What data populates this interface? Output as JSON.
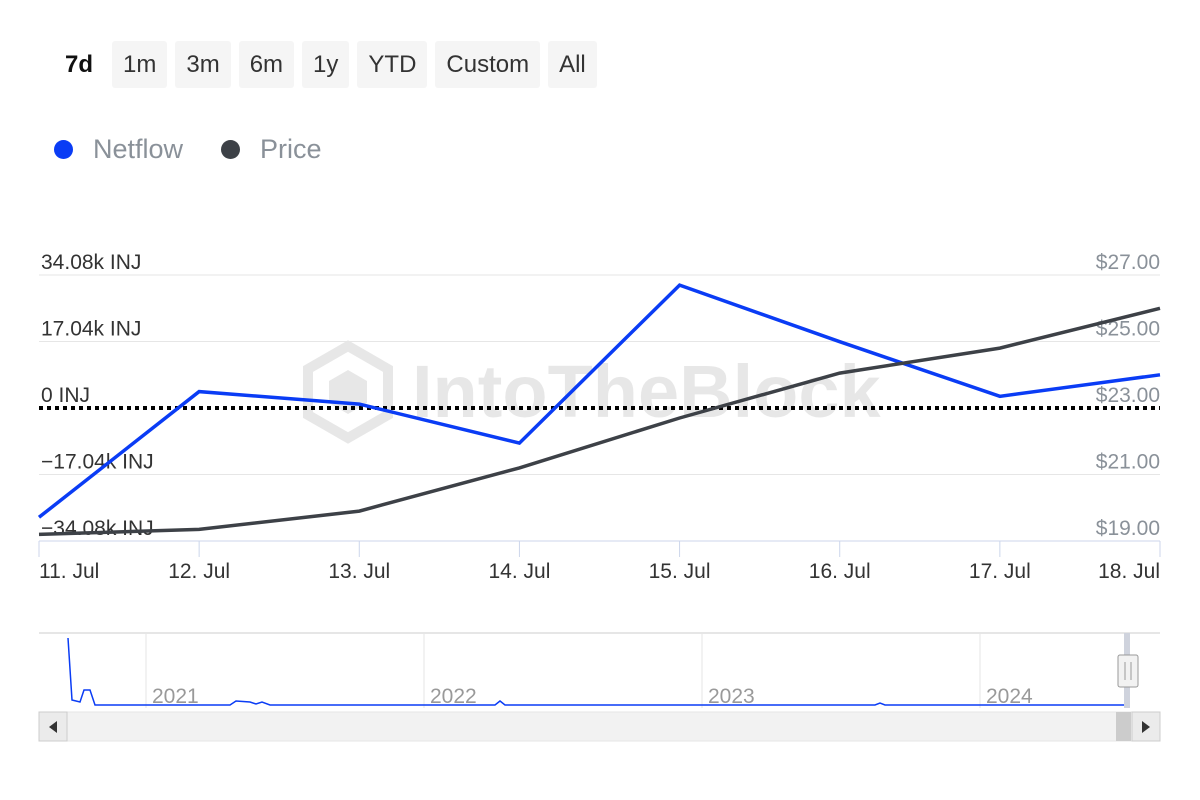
{
  "range_selector": {
    "buttons": [
      "7d",
      "1m",
      "3m",
      "6m",
      "1y",
      "YTD",
      "Custom",
      "All"
    ],
    "active": "7d"
  },
  "watermark": "IntoTheBlock",
  "legend": [
    {
      "label": "Netflow",
      "color": "#0a3cf5"
    },
    {
      "label": "Price",
      "color": "#3d4147"
    }
  ],
  "chart_data": {
    "type": "line",
    "x": [
      "11. Jul",
      "12. Jul",
      "13. Jul",
      "14. Jul",
      "15. Jul",
      "16. Jul",
      "17. Jul",
      "18. Jul"
    ],
    "series": [
      {
        "name": "Netflow",
        "axis": "left",
        "color": "#0a3cf5",
        "values": [
          -28000,
          4200,
          1000,
          -9000,
          31500,
          17000,
          3000,
          8500
        ]
      },
      {
        "name": "Price",
        "axis": "right",
        "color": "#3d4147",
        "values": [
          19.2,
          19.35,
          19.9,
          21.2,
          22.7,
          24.05,
          24.8,
          26.0
        ]
      }
    ],
    "y_left": {
      "ticks": [
        34080,
        17040,
        0,
        -17040,
        -34080
      ],
      "labels": [
        "34.08k INJ",
        "17.04k INJ",
        "0 INJ",
        "−17.04k INJ",
        "−34.08k INJ"
      ],
      "range": [
        -34080,
        34080
      ]
    },
    "y_right": {
      "ticks": [
        27,
        25,
        23,
        21,
        19
      ],
      "labels": [
        "$27.00",
        "$25.00",
        "$23.00",
        "$21.00",
        "$19.00"
      ],
      "range": [
        19,
        27
      ]
    },
    "zero_line": {
      "style": "dotted",
      "color": "#000000"
    },
    "grid": true,
    "navigator": {
      "years": [
        "2021",
        "2022",
        "2023",
        "2024"
      ],
      "series": "Netflow"
    }
  }
}
